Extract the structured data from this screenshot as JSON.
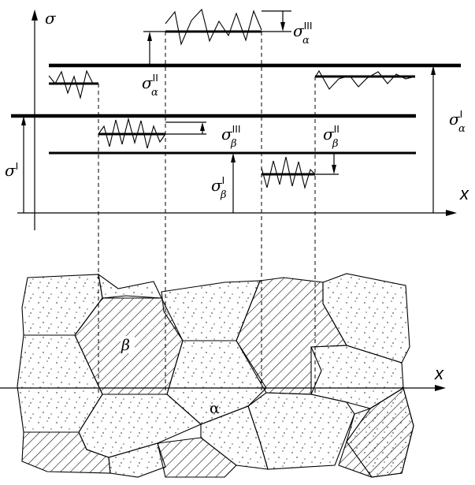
{
  "axes": {
    "y_label": "σ",
    "x_label_top": "x",
    "x_label_bottom": "x"
  },
  "labels": {
    "sigma_I": {
      "base": "σ",
      "sup": "I",
      "sub": ""
    },
    "sigma_alpha_I": {
      "base": "σ",
      "sup": "I",
      "sub": "α"
    },
    "sigma_alpha_II": {
      "base": "σ",
      "sup": "II",
      "sub": "α"
    },
    "sigma_alpha_III": {
      "base": "σ",
      "sup": "III",
      "sub": "α"
    },
    "sigma_beta_I": {
      "base": "σ",
      "sup": "I",
      "sub": "β"
    },
    "sigma_beta_II": {
      "base": "σ",
      "sup": "II",
      "sub": "β"
    },
    "sigma_beta_III": {
      "base": "σ",
      "sup": "III",
      "sub": "β"
    }
  },
  "phases": {
    "beta": "β",
    "alpha": "α"
  },
  "colors": {
    "ink": "#000000",
    "paper": "#ffffff"
  }
}
